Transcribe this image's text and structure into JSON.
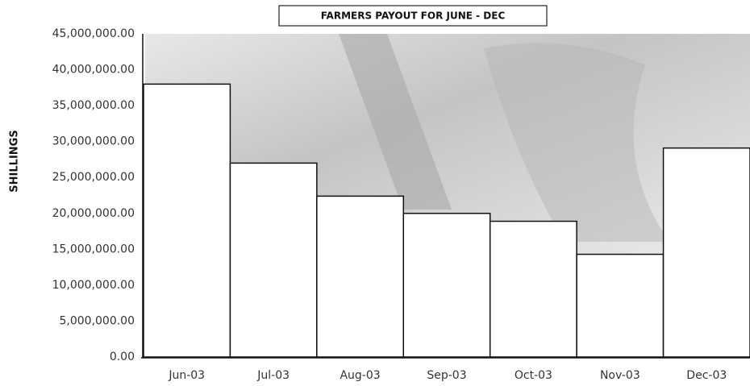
{
  "chart_data": {
    "type": "bar",
    "title": "FARMERS PAYOUT FOR JUNE - DEC",
    "y_label": "SHILLINGS",
    "categories": [
      "Jun-03",
      "Jul-03",
      "Aug-03",
      "Sep-03",
      "Oct-03",
      "Nov-03",
      "Dec-03"
    ],
    "values": [
      38000000,
      27000000,
      22400000,
      20000000,
      18900000,
      14300000,
      29100000
    ],
    "color": "#ffffff",
    "ylim": [
      0,
      45000000
    ],
    "yticks": [
      {
        "value": 0,
        "label": "0.00"
      },
      {
        "value": 5000000,
        "label": "5,000,000.00"
      },
      {
        "value": 10000000,
        "label": "10,000,000.00"
      },
      {
        "value": 15000000,
        "label": "15,000,000.00"
      },
      {
        "value": 20000000,
        "label": "20,000,000.00"
      },
      {
        "value": 25000000,
        "label": "25,000,000.00"
      },
      {
        "value": 30000000,
        "label": "30,000,000.00"
      },
      {
        "value": 35000000,
        "label": "35,000,000.00"
      },
      {
        "value": 40000000,
        "label": "40,000,000.00"
      },
      {
        "value": 45000000,
        "label": "45,000,000.00"
      }
    ],
    "grid": false
  }
}
